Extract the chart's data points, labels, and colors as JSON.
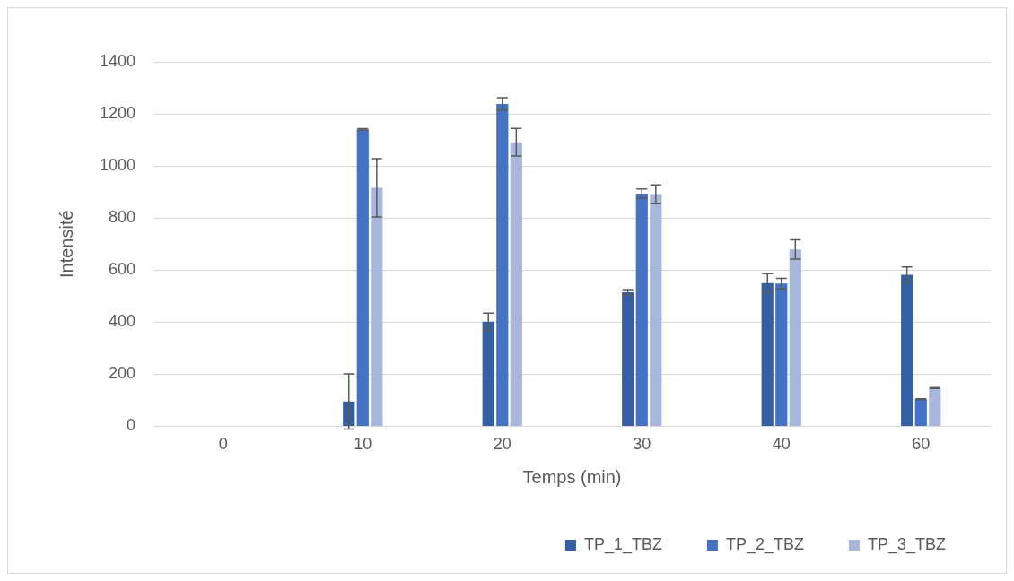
{
  "chart_data": {
    "type": "bar",
    "xlabel": "Temps (min)",
    "ylabel": "Intensité",
    "categories": [
      "0",
      "10",
      "20",
      "30",
      "40",
      "60"
    ],
    "series": [
      {
        "name": "TP_1_TBZ",
        "color": "#355fa3",
        "values": [
          0,
          95,
          402,
          515,
          550,
          582
        ],
        "errors": [
          null,
          106,
          33,
          10,
          36,
          30
        ]
      },
      {
        "name": "TP_2_TBZ",
        "color": "#4472c4",
        "values": [
          0,
          1140,
          1238,
          894,
          548,
          104
        ],
        "errors": [
          null,
          3,
          24,
          18,
          20,
          2
        ]
      },
      {
        "name": "TP_3_TBZ",
        "color": "#a9b7dc",
        "values": [
          0,
          916,
          1091,
          892,
          679,
          147
        ],
        "errors": [
          null,
          112,
          53,
          35,
          37,
          2
        ]
      }
    ],
    "ylim": [
      0,
      1400
    ],
    "yticks": [
      0,
      200,
      400,
      600,
      800,
      1000,
      1200,
      1400
    ],
    "grid": "y",
    "legend": "bottom"
  }
}
